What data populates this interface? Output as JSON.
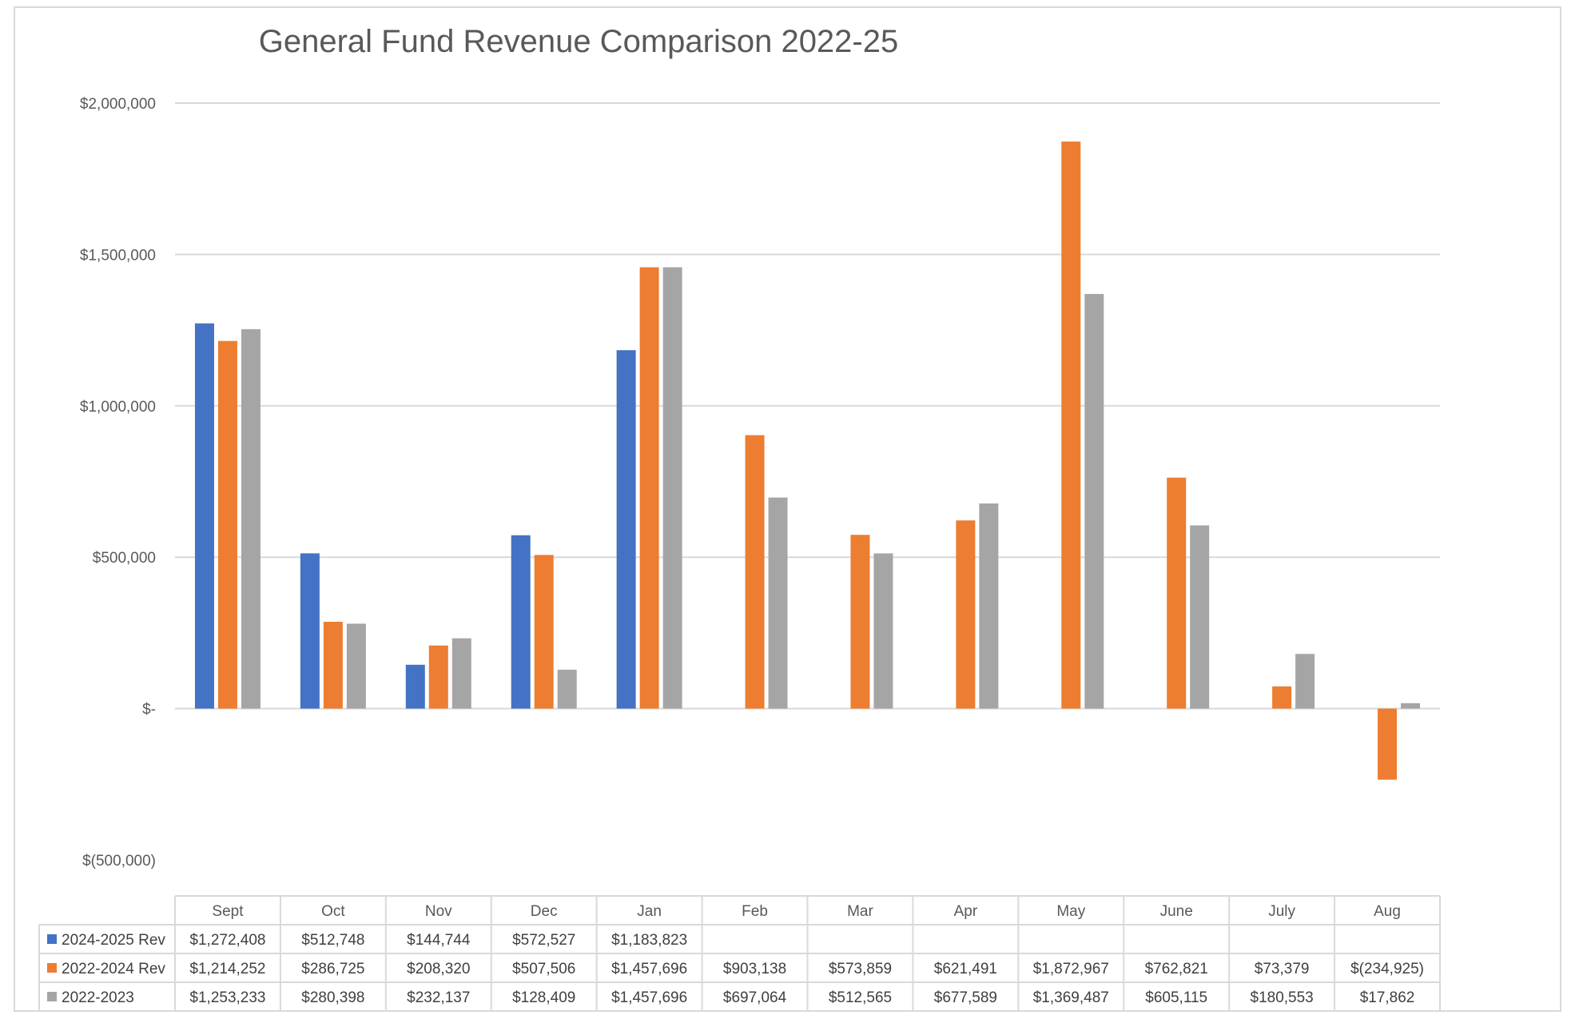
{
  "chart_data": {
    "type": "bar",
    "title": "General Fund Revenue Comparison 2022-25",
    "xlabel": "",
    "ylabel": "",
    "ylim": [
      -500000,
      2000000
    ],
    "y_ticks": [
      2000000,
      1500000,
      1000000,
      500000,
      0,
      -500000
    ],
    "y_tick_labels": [
      "$2,000,000",
      "$1,500,000",
      "$1,000,000",
      "$500,000",
      "$-",
      "$(500,000)"
    ],
    "grid": true,
    "legend_placement": "data-table",
    "categories": [
      "Sept",
      "Oct",
      "Nov",
      "Dec",
      "Jan",
      "Feb",
      "Mar",
      "Apr",
      "May",
      "June",
      "July",
      "Aug"
    ],
    "series": [
      {
        "name": "2024-2025 Rev",
        "color": "#4472C4",
        "values": [
          1272408,
          512748,
          144744,
          572527,
          1183823,
          null,
          null,
          null,
          null,
          null,
          null,
          null
        ],
        "labels": [
          "$1,272,408",
          "$512,748",
          "$144,744",
          "$572,527",
          "$1,183,823",
          "",
          "",
          "",
          "",
          "",
          "",
          ""
        ]
      },
      {
        "name": "2022-2024 Rev",
        "color": "#ED7D31",
        "values": [
          1214252,
          286725,
          208320,
          507506,
          1457696,
          903138,
          573859,
          621491,
          1872967,
          762821,
          73379,
          -234925
        ],
        "labels": [
          "$1,214,252",
          "$286,725",
          "$208,320",
          "$507,506",
          "$1,457,696",
          "$903,138",
          "$573,859",
          "$621,491",
          "$1,872,967",
          "$762,821",
          "$73,379",
          "$(234,925)"
        ]
      },
      {
        "name": "2022-2023",
        "color": "#A5A5A5",
        "values": [
          1253233,
          280398,
          232137,
          128409,
          1457696,
          697064,
          512565,
          677589,
          1369487,
          605115,
          180553,
          17862
        ],
        "labels": [
          "$1,253,233",
          "$280,398",
          "$232,137",
          "$128,409",
          "$1,457,696",
          "$697,064",
          "$512,565",
          "$677,589",
          "$1,369,487",
          "$605,115",
          "$180,553",
          "$17,862"
        ]
      }
    ]
  },
  "colors": {
    "gridline": "#d9d9d9",
    "axis_text": "#595959",
    "table_text": "#404040",
    "table_border": "#d9d9d9",
    "frame_border": "#d9d9d9"
  }
}
